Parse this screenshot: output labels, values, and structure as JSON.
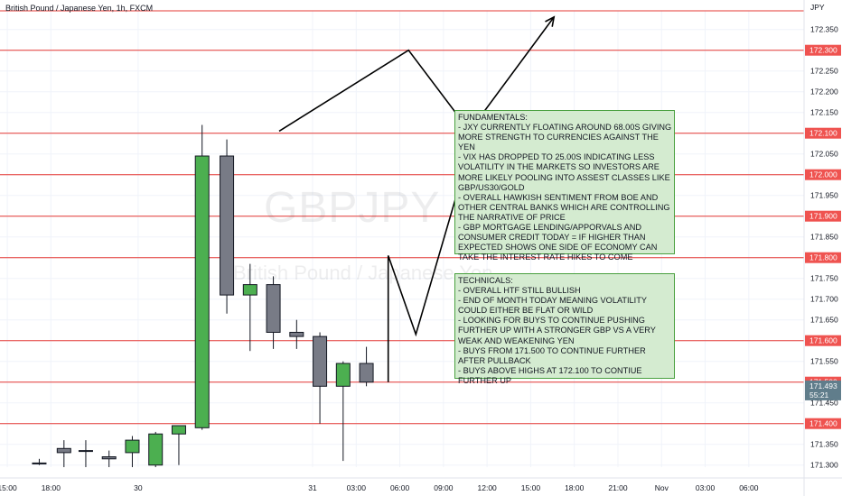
{
  "chart_data": {
    "type": "candlestick",
    "symbol_header": "British Pound / Japanese Yen, 1h, FXCM",
    "watermark_symbol": "GBPJPY",
    "watermark_name": "British Pound / Japanese Yen",
    "currency_label": "JPY",
    "y_ticks": [
      "172.350",
      "172.300",
      "172.250",
      "172.200",
      "172.150",
      "172.100",
      "172.050",
      "172.000",
      "171.950",
      "171.900",
      "171.850",
      "171.800",
      "171.750",
      "171.700",
      "171.650",
      "171.600",
      "171.550",
      "171.500",
      "171.450",
      "171.400",
      "171.350",
      "171.300"
    ],
    "x_ticks": [
      {
        "label": "15:00",
        "hour": -51
      },
      {
        "label": "18:00",
        "hour": -48
      },
      {
        "label": "30",
        "hour": -42
      },
      {
        "label": "31",
        "hour": -30
      },
      {
        "label": "03:00",
        "hour": -27
      },
      {
        "label": "06:00",
        "hour": -24
      },
      {
        "label": "09:00",
        "hour": -21
      },
      {
        "label": "12:00",
        "hour": -18
      },
      {
        "label": "15:00",
        "hour": -15
      },
      {
        "label": "18:00",
        "hour": -12
      },
      {
        "label": "21:00",
        "hour": -9
      },
      {
        "label": "Nov",
        "hour": -6
      },
      {
        "label": "03:00",
        "hour": -3
      },
      {
        "label": "06:00",
        "hour": 0
      }
    ],
    "ylim": [
      171.295,
      172.395
    ],
    "xlim": [
      -51.5,
      3.8
    ],
    "candles": [
      {
        "hour": -48.8,
        "o": 171.305,
        "h": 171.315,
        "l": 171.3,
        "c": 171.305
      },
      {
        "hour": -47.1,
        "o": 171.34,
        "h": 171.36,
        "l": 171.295,
        "c": 171.33
      },
      {
        "hour": -45.6,
        "o": 171.335,
        "h": 171.36,
        "l": 171.295,
        "c": 171.335
      },
      {
        "hour": -44.0,
        "o": 171.32,
        "h": 171.335,
        "l": 171.295,
        "c": 171.315
      },
      {
        "hour": -42.4,
        "o": 171.33,
        "h": 171.37,
        "l": 171.295,
        "c": 171.36
      },
      {
        "hour": -40.8,
        "o": 171.3,
        "h": 171.38,
        "l": 171.295,
        "c": 171.375
      },
      {
        "hour": -39.2,
        "o": 171.375,
        "h": 171.395,
        "l": 171.3,
        "c": 171.395
      },
      {
        "hour": -37.6,
        "o": 171.39,
        "h": 172.12,
        "l": 171.385,
        "c": 172.045
      },
      {
        "hour": -35.9,
        "o": 172.045,
        "h": 172.085,
        "l": 171.665,
        "c": 171.71
      },
      {
        "hour": -34.3,
        "o": 171.71,
        "h": 171.785,
        "l": 171.575,
        "c": 171.735
      },
      {
        "hour": -32.7,
        "o": 171.735,
        "h": 171.755,
        "l": 171.58,
        "c": 171.62
      },
      {
        "hour": -31.1,
        "o": 171.62,
        "h": 171.65,
        "l": 171.58,
        "c": 171.61
      },
      {
        "hour": -29.5,
        "o": 171.61,
        "h": 171.62,
        "l": 171.4,
        "c": 171.49
      },
      {
        "hour": -27.9,
        "o": 171.49,
        "h": 171.55,
        "l": 171.31,
        "c": 171.545
      },
      {
        "hour": -26.3,
        "o": 171.545,
        "h": 171.585,
        "l": 171.49,
        "c": 171.5
      }
    ],
    "horizontal_levels": [
      {
        "price": 172.395,
        "tag": ""
      },
      {
        "price": 172.3,
        "tag": "172.300"
      },
      {
        "price": 172.1,
        "tag": "172.100"
      },
      {
        "price": 172.0,
        "tag": "172.000"
      },
      {
        "price": 171.9,
        "tag": "171.900"
      },
      {
        "price": 171.8,
        "tag": "171.800"
      },
      {
        "price": 171.6,
        "tag": "171.600"
      },
      {
        "price": 171.5,
        "tag": "171.500"
      },
      {
        "price": 171.4,
        "tag": "171.400"
      }
    ],
    "current_price": {
      "price": 171.493,
      "label": "171.493",
      "countdown": "55:21"
    },
    "path_upper": [
      {
        "hour": -32.3,
        "price": 172.105
      },
      {
        "hour": -23.4,
        "price": 172.3
      },
      {
        "hour": -19.2,
        "price": 172.105
      },
      {
        "hour": -13.4,
        "price": 172.38
      }
    ],
    "path_lower": [
      {
        "hour": -24.8,
        "price": 171.5
      },
      {
        "hour": -24.8,
        "price": 171.805
      },
      {
        "hour": -22.9,
        "price": 171.615
      },
      {
        "hour": -18.9,
        "price": 172.095
      }
    ],
    "colors": {
      "up": "#4caf50",
      "down": "#787b86",
      "level": "#e53935",
      "arrow": "#000000",
      "note_bg": "#d4ebd0",
      "note_border": "#49a03f",
      "price_tag": "#ef5350",
      "current_tag": "#607d8b"
    }
  },
  "notes": {
    "fundamentals": "FUNDAMENTALS:\n- JXY CURRENTLY FLOATING AROUND 68.00s GIVING MORE STRENGTH TO CURRENCIES AGAINST THE YEN\n- VIX HAS DROPPED TO 25.00s INDICATING LESS VOLATILITY IN THE MARKETS SO INVESTORS ARE MORE LIKELY POOLING INTO ASSEST CLASSES LIKE GBP/US30/GOLD\n- OVERALL HAWKISH SENTIMENT FROM BOE AND OTHER CENTRAL BANKS WHICH ARE CONTROLLING THE NARRATIVE OF PRICE\n- GBP MORTGAGE LENDING/APPORVALS AND CONSUMER CREDIT TODAY = IF HIGHER THAN EXPECTED SHOWS ONE SIDE OF ECONOMY CAN TAKE THE INTEREST RATE HIKES TO COME",
    "technicals": "TECHNICALS:\n- OVERALL HTF STILL BULLISH\n- END OF MONTH TODAY MEANING VOLATILITY COULD EITHER BE FLAT OR WILD\n- LOOKING FOR BUYS TO CONTINUE PUSHING FURTHER UP WITH A STRONGER GBP VS A VERY WEAK AND WEAKENING YEN\n- BUYS FROM 171.500 TO CONTINUE FURTHER AFTER PULLBACK\n- BUYS ABOVE HIGHS AT 172.100 TO CONTIUE FURTHER UP"
  }
}
